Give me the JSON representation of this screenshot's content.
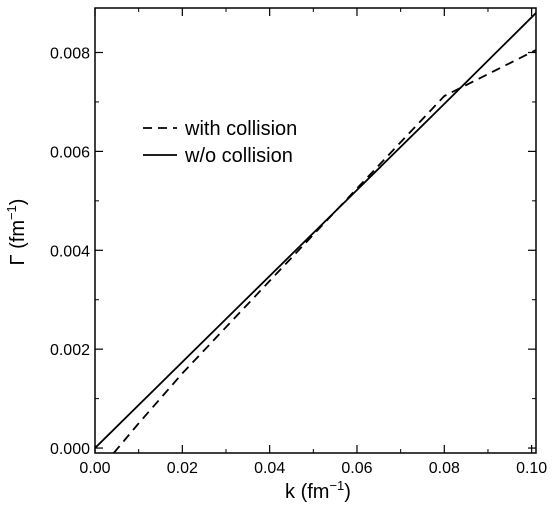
{
  "chart_data": {
    "type": "line",
    "xlabel": "k (fm",
    "xlabel_sup": "−1",
    "xlabel_end": ")",
    "ylabel": "Γ (fm",
    "ylabel_sup": "−1",
    "ylabel_end": ")",
    "xlim": [
      0.0,
      0.101
    ],
    "ylim": [
      -0.0001,
      0.0089
    ],
    "xticks": [
      0.0,
      0.02,
      0.04,
      0.06,
      0.08,
      0.1
    ],
    "xtick_labels": [
      "0.00",
      "0.02",
      "0.04",
      "0.06",
      "0.08",
      "0.10"
    ],
    "yticks": [
      0.0,
      0.002,
      0.004,
      0.006,
      0.008
    ],
    "ytick_labels": [
      "0.000",
      "0.002",
      "0.004",
      "0.006",
      "0.008"
    ],
    "grid": false,
    "legend_position": "upper-left",
    "series": [
      {
        "name": "with collision",
        "style": "dashed",
        "color": "#000000",
        "x": [
          0.0043,
          0.01,
          0.02,
          0.04,
          0.06,
          0.08,
          0.101
        ],
        "y": [
          -0.0001,
          0.0005,
          0.00151,
          0.00338,
          0.00525,
          0.00712,
          0.00805
        ]
      },
      {
        "name": "w/o collision",
        "style": "solid",
        "color": "#000000",
        "x": [
          0.0,
          0.02,
          0.04,
          0.06,
          0.08,
          0.101
        ],
        "y": [
          0.0,
          0.00174,
          0.00348,
          0.00522,
          0.00696,
          0.0088
        ]
      }
    ]
  }
}
